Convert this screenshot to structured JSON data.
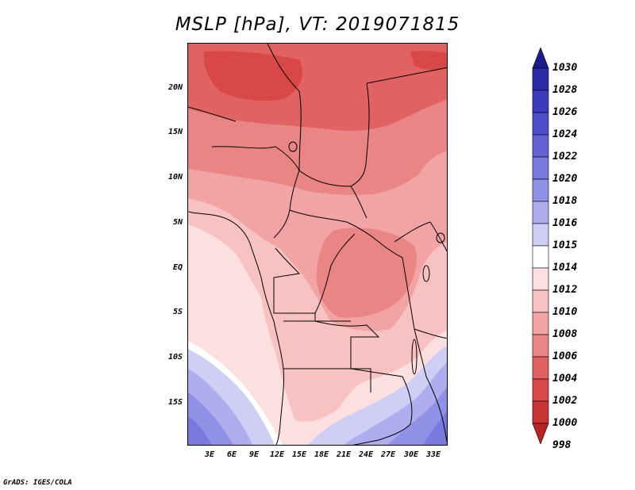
{
  "title": "MSLP [hPa], VT: 2019071815",
  "credit": "GrADS: IGES/COLA",
  "lat_labels": [
    "20N",
    "15N",
    "10N",
    "5N",
    "EQ",
    "5S",
    "10S",
    "15S"
  ],
  "lon_labels": [
    "3E",
    "6E",
    "9E",
    "12E",
    "15E",
    "18E",
    "21E",
    "24E",
    "27E",
    "30E",
    "33E"
  ],
  "colorbar": {
    "levels": [
      "1030",
      "1028",
      "1026",
      "1024",
      "1022",
      "1020",
      "1018",
      "1016",
      "1015",
      "1014",
      "1012",
      "1010",
      "1008",
      "1006",
      "1004",
      "1002",
      "1000",
      "998"
    ],
    "colors": [
      "#1c1d8c",
      "#2b2ba6",
      "#3c3cba",
      "#4e4ec8",
      "#6262d4",
      "#7878de",
      "#9090e6",
      "#aeaeee",
      "#cfcff6",
      "#ffffff",
      "#fce0e0",
      "#f8c2c2",
      "#f2a3a3",
      "#e98585",
      "#e06262",
      "#d94848",
      "#c93434",
      "#b82424"
    ]
  }
}
